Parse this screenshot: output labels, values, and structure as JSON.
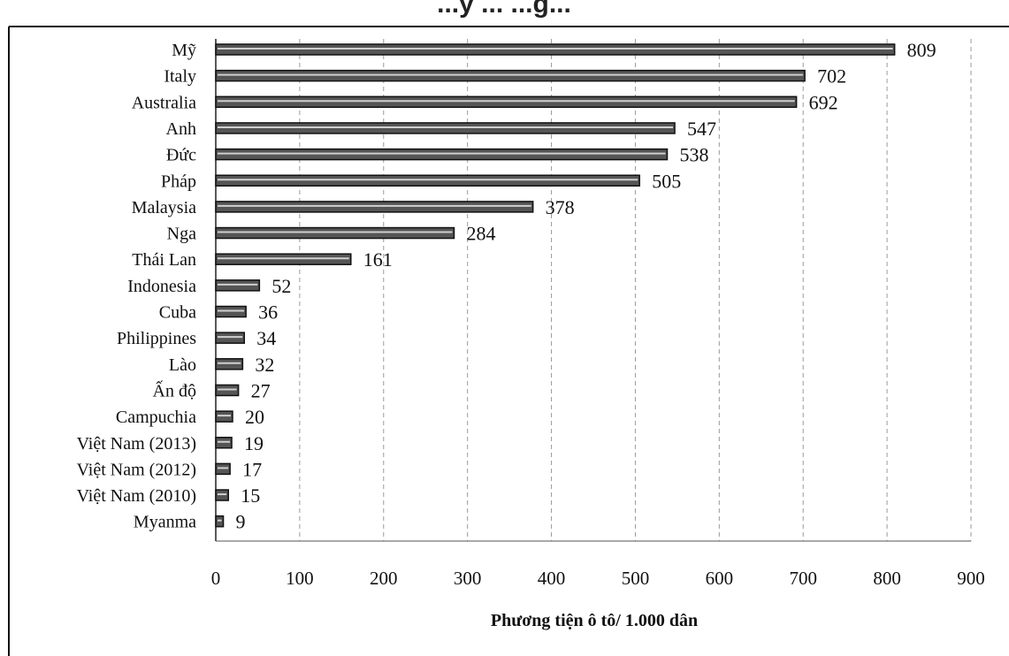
{
  "chart_data": {
    "type": "bar",
    "orientation": "horizontal",
    "title_fragment": "...y ... ...g...",
    "xlabel": "Phương tiện ô tô/ 1.000 dân",
    "ylabel": "",
    "xlim": [
      0,
      900
    ],
    "xticks": [
      0,
      100,
      200,
      300,
      400,
      500,
      600,
      700,
      800,
      900
    ],
    "grid": "vertical dashed",
    "bar_color": "#555555",
    "categories": [
      "Mỹ",
      "Italy",
      "Australia",
      "Anh",
      "Đức",
      "Pháp",
      "Malaysia",
      "Nga",
      "Thái Lan",
      "Indonesia",
      "Cuba",
      "Philippines",
      "Lào",
      "Ấn độ",
      "Campuchia",
      "Việt Nam (2013)",
      "Việt Nam (2012)",
      "Việt Nam (2010)",
      "Myanma"
    ],
    "values": [
      809,
      702,
      692,
      547,
      538,
      505,
      378,
      284,
      161,
      52,
      36,
      34,
      32,
      27,
      20,
      19,
      17,
      15,
      9
    ]
  }
}
